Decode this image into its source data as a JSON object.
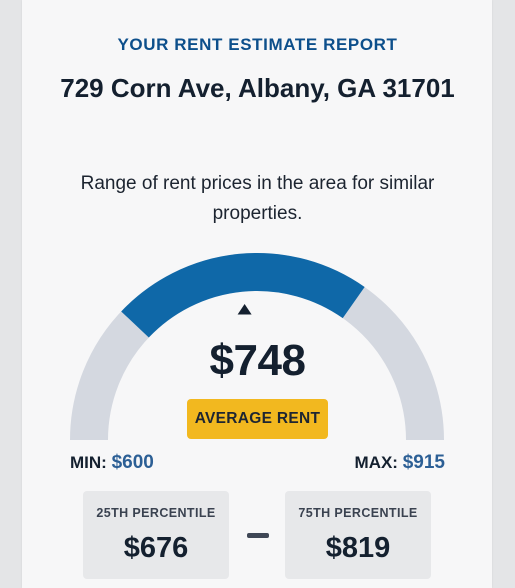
{
  "header": {
    "report_label": "YOUR RENT ESTIMATE REPORT",
    "address": "729 Corn Ave, Albany, GA 31701",
    "description": "Range of rent prices in the area for similar properties."
  },
  "gauge": {
    "min": 600,
    "max": 915,
    "average": 748,
    "p25": 676,
    "p75": 819,
    "colors": {
      "highlight": "#0f68a8",
      "track": "#d4d8e0",
      "marker": "#14202f"
    }
  },
  "estimate": {
    "price": "$748",
    "badge_label": "AVERAGE RENT"
  },
  "range": {
    "min_label": "MIN:",
    "min_value": "$600",
    "max_label": "MAX:",
    "max_value": "$915"
  },
  "percentiles": {
    "p25_label": "25TH PERCENTILE",
    "p25_value": "$676",
    "p75_label": "75TH PERCENTILE",
    "p75_value": "$819"
  }
}
